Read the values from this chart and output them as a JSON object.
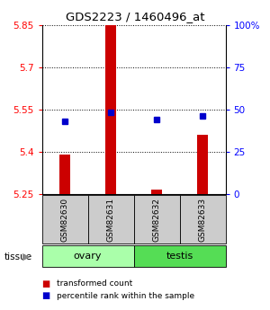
{
  "title": "GDS2223 / 1460496_at",
  "samples": [
    "GSM82630",
    "GSM82631",
    "GSM82632",
    "GSM82633"
  ],
  "tissue_groups": [
    {
      "label": "ovary",
      "samples": [
        "GSM82630",
        "GSM82631"
      ],
      "color": "#aaffaa"
    },
    {
      "label": "testis",
      "samples": [
        "GSM82632",
        "GSM82633"
      ],
      "color": "#55dd55"
    }
  ],
  "transformed_counts": [
    5.39,
    5.855,
    5.265,
    5.46
  ],
  "percentile_ranks": [
    43,
    48,
    44,
    46
  ],
  "y_min": 5.25,
  "y_max": 5.85,
  "y_ticks": [
    5.25,
    5.4,
    5.55,
    5.7,
    5.85
  ],
  "y_right_ticks": [
    0,
    25,
    50,
    75,
    100
  ],
  "y_right_labels": [
    "0",
    "25",
    "50",
    "75",
    "100%"
  ],
  "bar_color": "#cc0000",
  "dot_color": "#0000cc",
  "bar_width": 0.25,
  "background_color": "#ffffff",
  "label_area_color": "#cccccc",
  "tissue_label": "tissue",
  "legend_bar_label": "transformed count",
  "legend_dot_label": "percentile rank within the sample"
}
